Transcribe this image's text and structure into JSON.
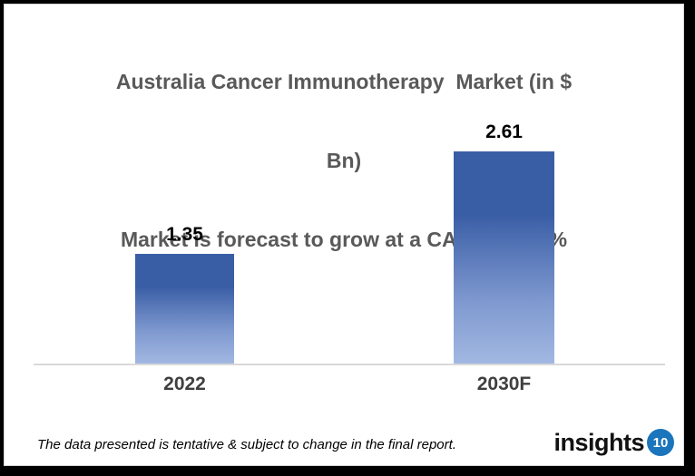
{
  "header": {
    "title_line1": "Australia Cancer Immunotherapy  Market (in $",
    "title_line2": "Bn)",
    "subtitle": "Market is forecast to grow at a CAGR of 8.6%"
  },
  "chart_data": {
    "type": "bar",
    "title": "Australia Cancer Immunotherapy Market (in $ Bn)",
    "subtitle": "Market is forecast to grow at a CAGR of 8.6%",
    "categories": [
      "2022",
      "2030F"
    ],
    "values": [
      1.35,
      2.61
    ],
    "value_labels": [
      "1.35",
      "2.61"
    ],
    "grid": false,
    "legend": "none",
    "colors": {
      "bar_top": "#3A5EA6",
      "bar_mid": "#7E98CF",
      "bar_bottom": "#A2B8E2",
      "axis_line": "#D9D9D9",
      "title_text": "#595959",
      "category_text": "#3F3F3F",
      "value_text": "#000000"
    }
  },
  "footer": {
    "note": "The data presented is tentative & subject to change in the final report.",
    "logo_text": "insights",
    "logo_badge": "10",
    "logo_badge_color": "#1B75BC"
  }
}
